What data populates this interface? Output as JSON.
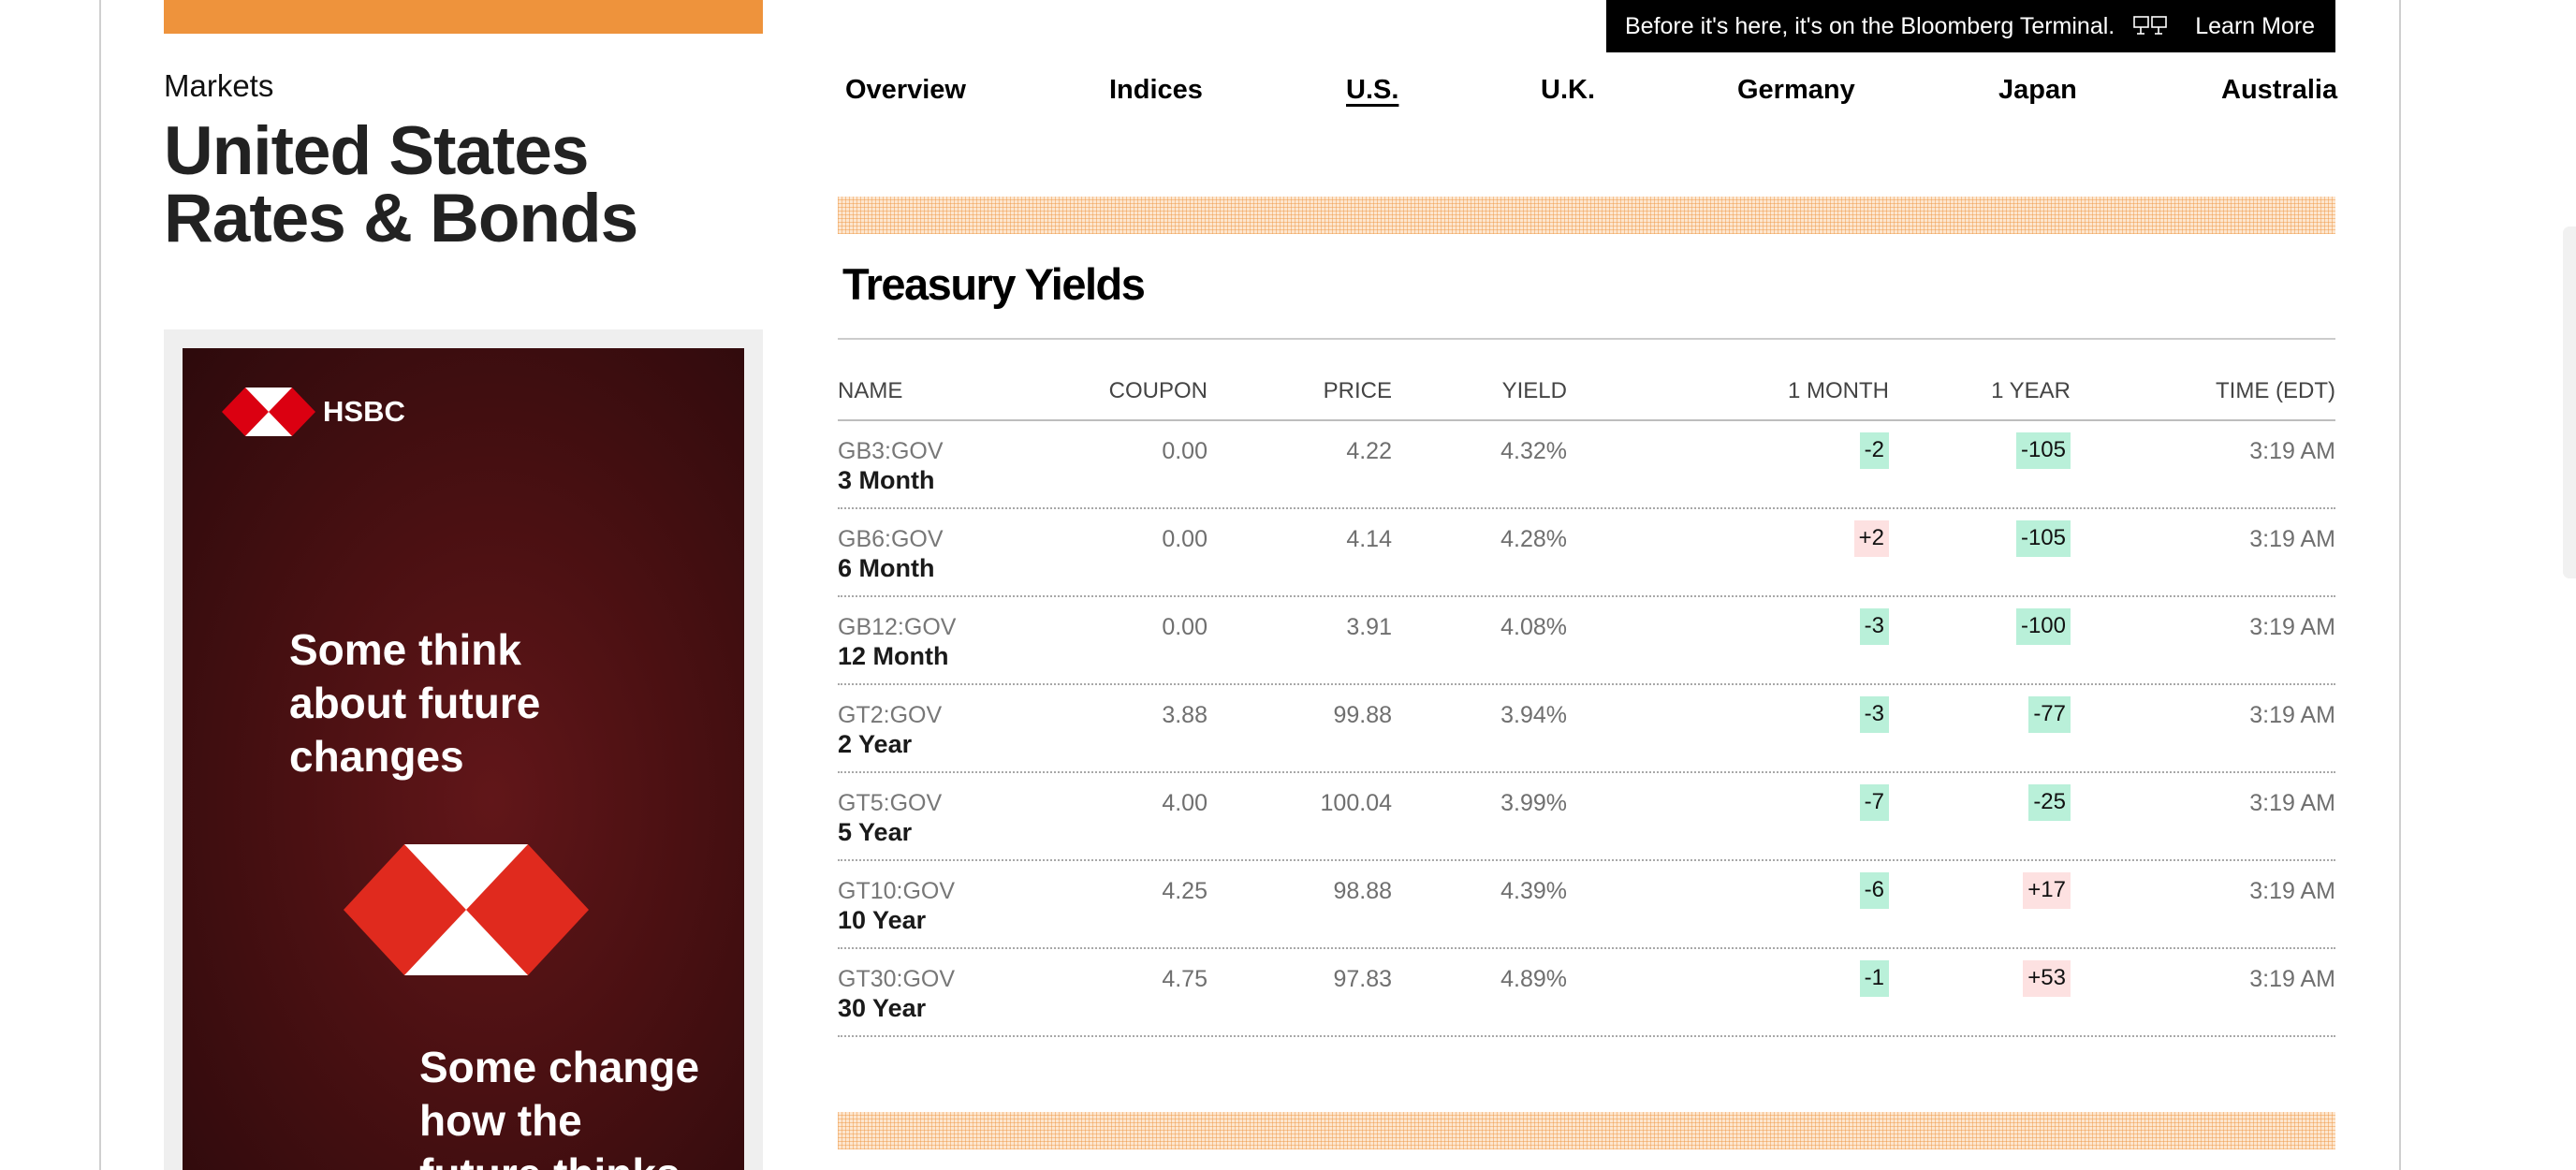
{
  "promo": {
    "text": "Before it's here, it's on the Bloomberg Terminal.",
    "icon": "terminal-icon",
    "link": "Learn More"
  },
  "header": {
    "breadcrumb": "Markets",
    "title_line1": "United States",
    "title_line2": "Rates & Bonds"
  },
  "nav": {
    "active": "U.S.",
    "items": [
      "Overview",
      "Indices",
      "U.S.",
      "U.K.",
      "Germany",
      "Japan",
      "Australia"
    ]
  },
  "section": {
    "title": "Treasury Yields"
  },
  "table": {
    "columns": [
      "NAME",
      "COUPON",
      "PRICE",
      "YIELD",
      "1 MONTH",
      "1 YEAR",
      "TIME (EDT)"
    ],
    "rows": [
      {
        "ticker": "GB3:GOV",
        "name": "3 Month",
        "coupon": "0.00",
        "price": "4.22",
        "yield": "4.32%",
        "month": "-2",
        "year": "-105",
        "time": "3:19 AM"
      },
      {
        "ticker": "GB6:GOV",
        "name": "6 Month",
        "coupon": "0.00",
        "price": "4.14",
        "yield": "4.28%",
        "month": "+2",
        "year": "-105",
        "time": "3:19 AM"
      },
      {
        "ticker": "GB12:GOV",
        "name": "12 Month",
        "coupon": "0.00",
        "price": "3.91",
        "yield": "4.08%",
        "month": "-3",
        "year": "-100",
        "time": "3:19 AM"
      },
      {
        "ticker": "GT2:GOV",
        "name": "2 Year",
        "coupon": "3.88",
        "price": "99.88",
        "yield": "3.94%",
        "month": "-3",
        "year": "-77",
        "time": "3:19 AM"
      },
      {
        "ticker": "GT5:GOV",
        "name": "5 Year",
        "coupon": "4.00",
        "price": "100.04",
        "yield": "3.99%",
        "month": "-7",
        "year": "-25",
        "time": "3:19 AM"
      },
      {
        "ticker": "GT10:GOV",
        "name": "10 Year",
        "coupon": "4.25",
        "price": "98.88",
        "yield": "4.39%",
        "month": "-6",
        "year": "+17",
        "time": "3:19 AM"
      },
      {
        "ticker": "GT30:GOV",
        "name": "30 Year",
        "coupon": "4.75",
        "price": "97.83",
        "yield": "4.89%",
        "month": "-1",
        "year": "+53",
        "time": "3:19 AM"
      }
    ]
  },
  "ad": {
    "brand": "HSBC",
    "headline1": [
      "Some think",
      "about future",
      "changes"
    ],
    "headline2": [
      "Some change",
      "how the",
      "future thinks"
    ]
  },
  "colors": {
    "accent_orange": "#ee933c",
    "negative_change_bg": "#b9f0d9",
    "positive_change_bg": "#fde1e1",
    "hsbc_red": "#db0011"
  }
}
